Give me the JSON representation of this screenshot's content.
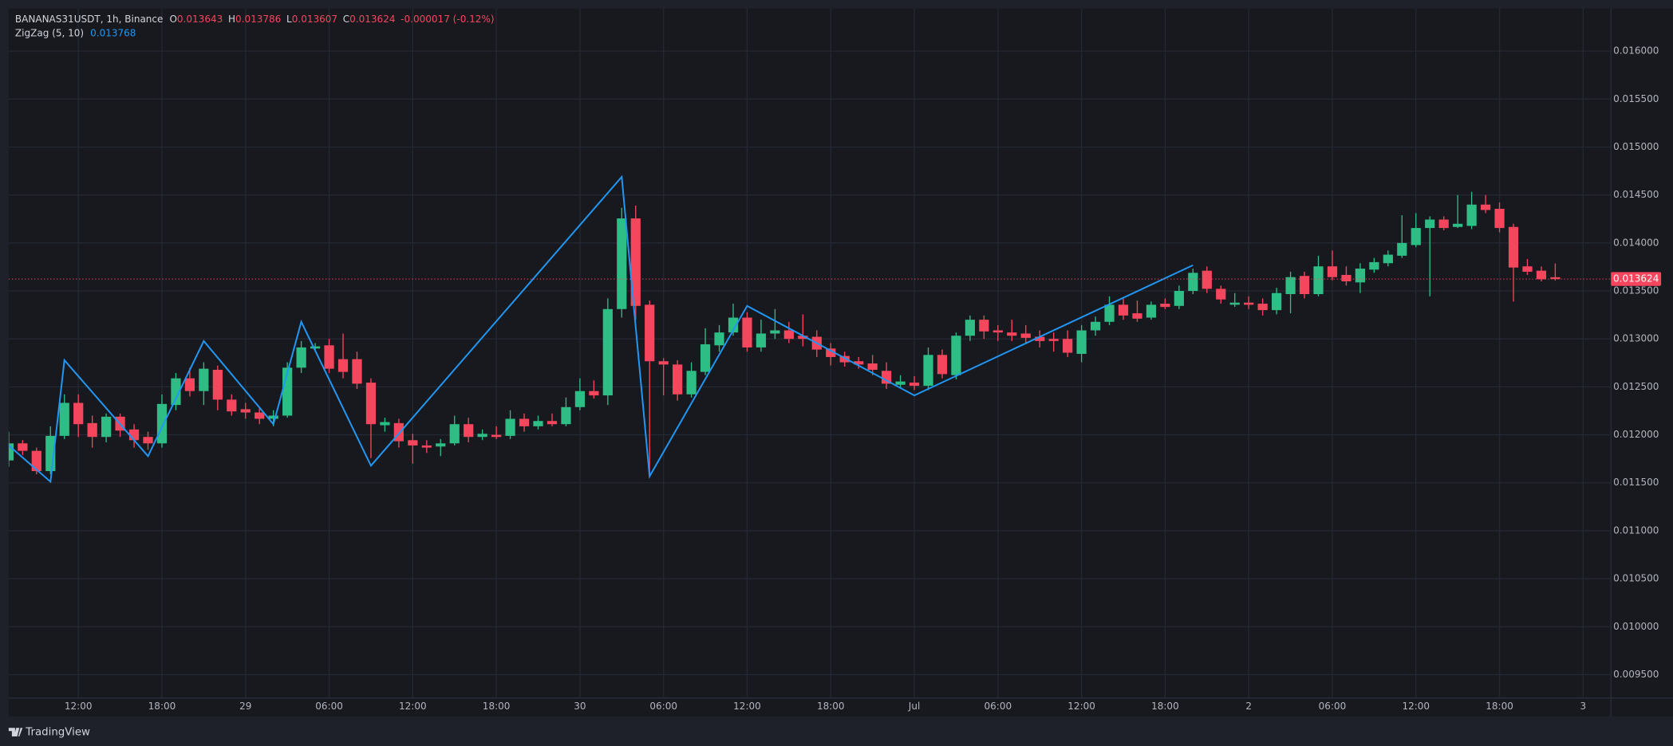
{
  "branding": "TradingView",
  "chart_data": {
    "type": "candlestick",
    "symbol": "BANANAS31USDT, 1h, Binance",
    "ohlc_labels": [
      "O",
      "H",
      "L",
      "C"
    ],
    "change": "-0.000017 (-0.12%)",
    "up_color": "#2ebd85",
    "down_color": "#f6465d",
    "grid": true,
    "categories": [
      null,
      null,
      null,
      null,
      null,
      "12:00",
      null,
      null,
      null,
      null,
      null,
      "18:00",
      null,
      null,
      null,
      null,
      null,
      "29",
      null,
      null,
      null,
      null,
      null,
      "06:00",
      null,
      null,
      null,
      null,
      null,
      "12:00",
      null,
      null,
      null,
      null,
      null,
      "18:00",
      null,
      null,
      null,
      null,
      null,
      "30",
      null,
      null,
      null,
      null,
      null,
      "06:00",
      null,
      null,
      null,
      null,
      null,
      "12:00",
      null,
      null,
      null,
      null,
      null,
      "18:00",
      null,
      null,
      null,
      null,
      null,
      "Jul",
      null,
      null,
      null,
      null,
      null,
      "06:00",
      null,
      null,
      null,
      null,
      null,
      "12:00",
      null,
      null,
      null,
      null,
      null,
      "18:00",
      null,
      null,
      null,
      null,
      null,
      "2",
      null,
      null,
      null,
      null,
      null,
      "06:00",
      null,
      null,
      null,
      null,
      null,
      "12:00",
      null,
      null,
      null,
      null,
      null,
      "18:00",
      null,
      null,
      null,
      null,
      null,
      "3"
    ],
    "open": [
      0.011733,
      0.011911,
      0.011833,
      0.011622,
      0.011989,
      0.012333,
      0.012122,
      0.011978,
      0.012189,
      0.012056,
      0.011978,
      0.011911,
      0.012311,
      0.012589,
      0.012456,
      0.012678,
      0.012367,
      0.012267,
      0.012233,
      0.012167,
      0.0122,
      0.0127,
      0.0129,
      0.012933,
      0.012789,
      0.012789,
      0.012544,
      0.0121,
      0.012122,
      0.011944,
      0.011889,
      0.011878,
      0.011911,
      0.012111,
      0.011978,
      0.012,
      0.011989,
      0.012167,
      0.012089,
      0.012144,
      0.012111,
      0.012289,
      0.012456,
      0.012411,
      0.013311,
      0.014256,
      0.013356,
      0.012767,
      0.012733,
      0.012422,
      0.012656,
      0.012933,
      0.013067,
      0.013222,
      0.012911,
      0.013056,
      0.013089,
      0.013033,
      0.013022,
      0.0129,
      0.012822,
      0.012767,
      0.012744,
      0.012667,
      0.012522,
      0.012544,
      0.012511,
      0.012833,
      0.012622,
      0.013033,
      0.0132,
      0.013089,
      0.013067,
      0.013056,
      0.013022,
      0.013,
      0.013,
      0.012844,
      0.013089,
      0.013178,
      0.013356,
      0.013267,
      0.013222,
      0.013367,
      0.013344,
      0.0135,
      0.013711,
      0.013522,
      0.013356,
      0.013378,
      0.013367,
      0.0133,
      0.013467,
      0.013656,
      0.013467,
      0.013756,
      0.013667,
      0.013589,
      0.013722,
      0.013789,
      0.013867,
      0.013978,
      0.014156,
      0.014244,
      0.014167,
      0.014178,
      0.0144,
      0.014356,
      0.014167,
      0.013756,
      0.013711,
      0.013643,
      null,
      null
    ],
    "high": [
      0.012033,
      0.011944,
      0.011867,
      0.012089,
      0.012422,
      0.012422,
      0.0122,
      0.012222,
      0.012222,
      0.012111,
      0.012033,
      0.012422,
      0.012644,
      0.0127,
      0.012756,
      0.012722,
      0.012422,
      0.012333,
      0.012278,
      0.012256,
      0.012756,
      0.012978,
      0.012956,
      0.013,
      0.013056,
      0.012867,
      0.012589,
      0.012178,
      0.012167,
      0.012011,
      0.011944,
      0.011956,
      0.0122,
      0.012178,
      0.012056,
      0.012089,
      0.012256,
      0.012222,
      0.0122,
      0.012222,
      0.012389,
      0.012589,
      0.012567,
      0.013422,
      0.014367,
      0.014389,
      0.0134,
      0.0128,
      0.012778,
      0.012756,
      0.013111,
      0.013144,
      0.013367,
      0.013278,
      0.0132,
      0.013311,
      0.013178,
      0.013256,
      0.013089,
      0.012956,
      0.012867,
      0.012811,
      0.012833,
      0.012756,
      0.012622,
      0.012611,
      0.012911,
      0.012889,
      0.013067,
      0.013244,
      0.013244,
      0.013144,
      0.0132,
      0.013144,
      0.013089,
      0.013067,
      0.013089,
      0.013144,
      0.013233,
      0.013444,
      0.013422,
      0.0134,
      0.013389,
      0.013422,
      0.013556,
      0.013733,
      0.013756,
      0.013556,
      0.013478,
      0.013444,
      0.013422,
      0.013533,
      0.0137,
      0.0137,
      0.013867,
      0.013922,
      0.013756,
      0.013789,
      0.013844,
      0.013922,
      0.014289,
      0.014311,
      0.014278,
      0.014278,
      0.0145,
      0.014533,
      0.0145,
      0.014422,
      0.0142,
      0.013833,
      0.013756,
      0.013786,
      null,
      null
    ],
    "low": [
      0.011667,
      0.011789,
      0.011589,
      0.011589,
      0.011956,
      0.011978,
      0.011867,
      0.011922,
      0.011978,
      0.011867,
      0.011844,
      0.011867,
      0.012256,
      0.0124,
      0.012311,
      0.012256,
      0.0122,
      0.012167,
      0.012111,
      0.012089,
      0.012178,
      0.012644,
      0.012867,
      0.012644,
      0.012589,
      0.012478,
      0.011756,
      0.012033,
      0.011867,
      0.0117,
      0.011811,
      0.011778,
      0.011889,
      0.011922,
      0.011944,
      0.011956,
      0.011956,
      0.012033,
      0.012056,
      0.012089,
      0.012089,
      0.012256,
      0.012378,
      0.012311,
      0.013222,
      0.0132,
      0.011556,
      0.012411,
      0.012356,
      0.012389,
      0.012622,
      0.012867,
      0.013033,
      0.012867,
      0.012867,
      0.013,
      0.012956,
      0.012922,
      0.012811,
      0.012722,
      0.012711,
      0.012689,
      0.012622,
      0.012478,
      0.012489,
      0.012467,
      0.012467,
      0.012589,
      0.012578,
      0.012978,
      0.013,
      0.012978,
      0.012978,
      0.012956,
      0.012911,
      0.012867,
      0.012811,
      0.012756,
      0.013033,
      0.013144,
      0.0132,
      0.013178,
      0.0132,
      0.013311,
      0.013311,
      0.013467,
      0.013478,
      0.013367,
      0.013333,
      0.013311,
      0.013244,
      0.013256,
      0.013267,
      0.013422,
      0.013444,
      0.013611,
      0.013556,
      0.013478,
      0.013689,
      0.013756,
      0.013844,
      0.013956,
      0.013444,
      0.014133,
      0.014156,
      0.014144,
      0.014311,
      0.014111,
      0.013389,
      0.013667,
      0.0136,
      0.013607,
      null,
      null
    ],
    "close": [
      0.011911,
      0.011833,
      0.011622,
      0.011989,
      0.012333,
      0.012111,
      0.011978,
      0.012189,
      0.012044,
      0.011944,
      0.011911,
      0.012322,
      0.012589,
      0.012456,
      0.012689,
      0.012367,
      0.012244,
      0.012233,
      0.012167,
      0.0122,
      0.0127,
      0.012911,
      0.012922,
      0.012689,
      0.012656,
      0.012533,
      0.012111,
      0.012133,
      0.011933,
      0.011889,
      0.011867,
      0.011911,
      0.012111,
      0.011978,
      0.012011,
      0.011978,
      0.012167,
      0.012089,
      0.012144,
      0.012111,
      0.012289,
      0.012456,
      0.012411,
      0.013311,
      0.014256,
      0.013344,
      0.012767,
      0.012733,
      0.012422,
      0.012667,
      0.012944,
      0.013067,
      0.013222,
      0.012911,
      0.013056,
      0.013089,
      0.013,
      0.013,
      0.012889,
      0.012811,
      0.012756,
      0.012733,
      0.012678,
      0.012533,
      0.012556,
      0.012511,
      0.012833,
      0.012633,
      0.013033,
      0.0132,
      0.013078,
      0.013067,
      0.013033,
      0.013011,
      0.012978,
      0.012978,
      0.012856,
      0.013089,
      0.013178,
      0.013356,
      0.013244,
      0.013211,
      0.013356,
      0.013333,
      0.0135,
      0.013689,
      0.013522,
      0.013411,
      0.013378,
      0.013356,
      0.0133,
      0.013478,
      0.013644,
      0.013467,
      0.013756,
      0.013644,
      0.0136,
      0.013733,
      0.0138,
      0.013878,
      0.014,
      0.014156,
      0.014244,
      0.014156,
      0.0142,
      0.0144,
      0.014344,
      0.014156,
      0.013744,
      0.0137,
      0.013622,
      0.013624,
      null,
      null
    ],
    "zigzag": {
      "name": "ZigZag (5, 10)",
      "color": "#2196f3",
      "x": [
        0,
        3,
        4,
        10,
        14,
        19,
        21,
        26,
        44,
        46,
        53,
        65,
        85
      ],
      "values": [
        0.011889,
        0.011511,
        0.012778,
        0.011778,
        0.012978,
        0.012111,
        0.013178,
        0.011678,
        0.014689,
        0.011567,
        0.013344,
        0.012411,
        0.013768
      ]
    },
    "xlim": [
      0,
      115
    ],
    "ylim": [
      0.009256,
      0.016444
    ],
    "yticks": [
      {
        "value": 0.0095,
        "label": "0.009500"
      },
      {
        "value": 0.01,
        "label": "0.010000"
      },
      {
        "value": 0.0105,
        "label": "0.010500"
      },
      {
        "value": 0.011,
        "label": "0.011000"
      },
      {
        "value": 0.0115,
        "label": "0.011500"
      },
      {
        "value": 0.012,
        "label": "0.012000"
      },
      {
        "value": 0.0125,
        "label": "0.012500"
      },
      {
        "value": 0.013,
        "label": "0.013000"
      },
      {
        "value": 0.0135,
        "label": "0.013500"
      },
      {
        "value": 0.014,
        "label": "0.014000"
      },
      {
        "value": 0.0145,
        "label": "0.014500"
      },
      {
        "value": 0.015,
        "label": "0.015000"
      },
      {
        "value": 0.0155,
        "label": "0.015500"
      },
      {
        "value": 0.016,
        "label": "0.016000"
      }
    ]
  }
}
